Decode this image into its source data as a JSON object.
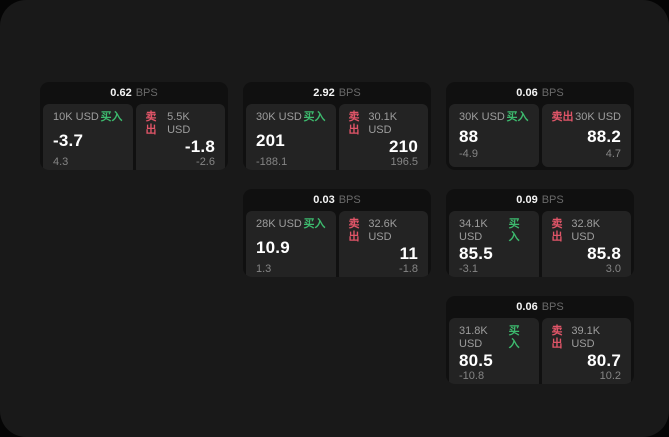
{
  "colors": {
    "buy_green": "#3dba6e",
    "sell_red": "#e05568",
    "surface": "#191919",
    "card_bg": "#101010",
    "panel_bg": "#232323"
  },
  "labels": {
    "bps_unit": "BPS",
    "buy": "买入",
    "sell": "卖出"
  },
  "cards": [
    {
      "bps": "0.62",
      "buy": {
        "amount": "10K USD",
        "price": "-3.7",
        "sub": "4.3"
      },
      "sell": {
        "amount": "5.5K USD",
        "price": "-1.8",
        "sub": "-2.6"
      }
    },
    {
      "bps": "2.92",
      "buy": {
        "amount": "30K USD",
        "price": "201",
        "sub": "-188.1"
      },
      "sell": {
        "amount": "30.1K USD",
        "price": "210",
        "sub": "196.5"
      }
    },
    {
      "bps": "0.06",
      "buy": {
        "amount": "30K USD",
        "price": "88",
        "sub": "-4.9"
      },
      "sell": {
        "amount": "30K USD",
        "price": "88.2",
        "sub": "4.7"
      }
    },
    {
      "bps": "0.03",
      "buy": {
        "amount": "28K USD",
        "price": "10.9",
        "sub": "1.3"
      },
      "sell": {
        "amount": "32.6K USD",
        "price": "11",
        "sub": "-1.8"
      }
    },
    {
      "bps": "0.09",
      "buy": {
        "amount": "34.1K USD",
        "price": "85.5",
        "sub": "-3.1"
      },
      "sell": {
        "amount": "32.8K USD",
        "price": "85.8",
        "sub": "3.0"
      }
    },
    {
      "bps": "0.06",
      "buy": {
        "amount": "31.8K USD",
        "price": "80.5",
        "sub": "-10.8"
      },
      "sell": {
        "amount": "39.1K USD",
        "price": "80.7",
        "sub": "10.2"
      }
    }
  ]
}
